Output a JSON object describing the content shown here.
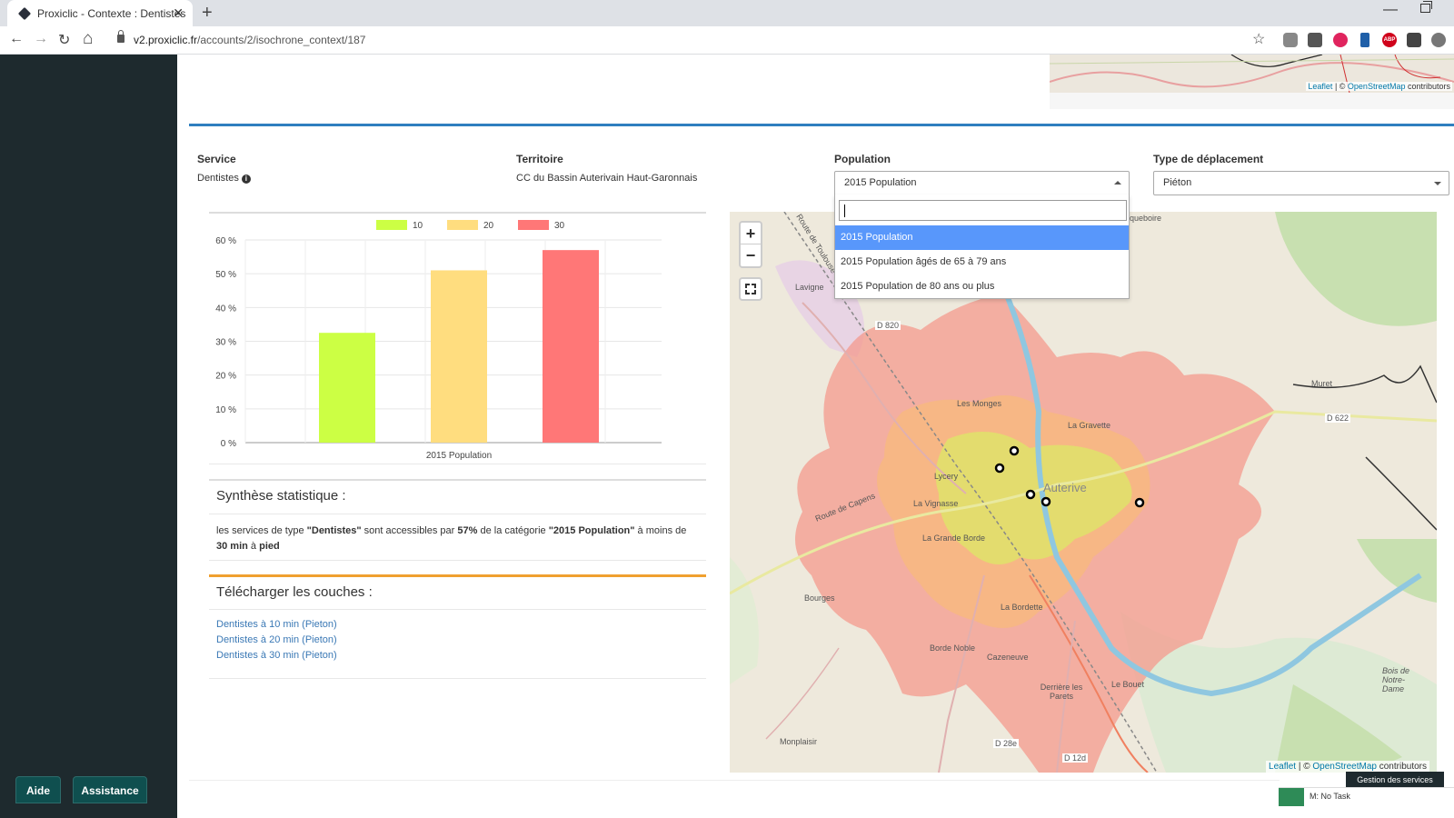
{
  "browser": {
    "tab_title": "Proxiclic - Contexte : Dentistes",
    "close_glyph": "✕",
    "new_tab_glyph": "+",
    "url_domain": "v2.proxiclic.fr",
    "url_path": "/accounts/2/isochrone_context/187",
    "back_glyph": "←",
    "forward_glyph": "→",
    "reload_glyph": "↻",
    "home_glyph": "⌂",
    "star_glyph": "☆",
    "minimize_glyph": "—",
    "ext_abp": "ABP"
  },
  "sidebar": {
    "help_label": "Aide",
    "assistance_label": "Assistance"
  },
  "mini_map": {
    "attribution_leaflet": "Leaflet",
    "attribution_sep": " | © ",
    "attribution_osm": "OpenStreetMap",
    "attribution_tail": " contributors"
  },
  "filters": {
    "service_label": "Service",
    "service_value": "Dentistes",
    "info_glyph": "i",
    "territory_label": "Territoire",
    "territory_value": "CC du Bassin Auterivain Haut-Garonnais",
    "population_label": "Population",
    "population_value": "2015 Population",
    "travel_label": "Type de déplacement",
    "travel_value": "Piéton"
  },
  "population_dropdown": {
    "options": [
      "2015 Population",
      "2015 Population âgés de 65 à 79 ans",
      "2015 Population de 80 ans ou plus"
    ]
  },
  "chart_data": {
    "type": "bar",
    "categories": [
      "2015 Population"
    ],
    "series": [
      {
        "name": "10",
        "values": [
          32.5
        ],
        "color": "#ccff44"
      },
      {
        "name": "20",
        "values": [
          51
        ],
        "color": "#ffdd7f"
      },
      {
        "name": "30",
        "values": [
          57
        ],
        "color": "#ff7777"
      }
    ],
    "y_ticks": [
      "0 %",
      "10 %",
      "20 %",
      "30 %",
      "40 %",
      "50 %",
      "60 %"
    ],
    "ylim": [
      0,
      60
    ],
    "grid": true,
    "legend": "top-center"
  },
  "synthese": {
    "title": "Synthèse statistique :",
    "t1": "les services de type ",
    "service": "\"Dentistes\"",
    "t2": " sont accessibles par ",
    "percent": "57%",
    "t3": " de la catégorie ",
    "category": "\"2015 Population\"",
    "t4": " à moins de ",
    "duration": "30 min",
    "t5": " à ",
    "mode": "pied"
  },
  "download": {
    "title": "Télécharger les couches :",
    "links": [
      "Dentistes à 10 min (Pieton)",
      "Dentistes à 20 min (Pieton)",
      "Dentistes à 30 min (Pieton)"
    ]
  },
  "map": {
    "zoom_in": "+",
    "zoom_out": "−",
    "attribution_leaflet": "Leaflet",
    "attribution_sep": " | © ",
    "attribution_osm": "OpenStreetMap",
    "attribution_tail": " contributors",
    "places": {
      "lavigne": "Lavigne",
      "d820": "D 820",
      "les_monges": "Les Monges",
      "la_gravette": "La Gravette",
      "lycery": "Lycery",
      "auterive": "Auterive",
      "la_vignasse": "La Vignasse",
      "la_grande_borde": "La Grande Borde",
      "bourges": "Bourges",
      "la_bordette": "La Bordette",
      "borde_noble": "Borde Noble",
      "cazeneuve": "Cazeneuve",
      "derriere_les_parets": "Derrière les Parets",
      "le_bouet": "Le Bouet",
      "monplaisir": "Monplaisir",
      "muret": "Muret",
      "d622": "D 622",
      "bois_notre_dame": "Bois de Notre-Dame",
      "d28e": "D 28e",
      "d12d": "D 12d",
      "route_capens": "Route de Capens",
      "route_toulouse": "Route de Toulouse",
      "queboire": "queboire"
    }
  },
  "footer": {
    "gestion": "Gestion des services",
    "no_task": "M: No Task"
  }
}
